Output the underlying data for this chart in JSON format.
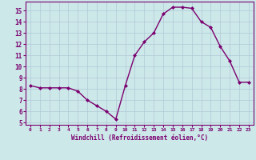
{
  "hours": [
    0,
    1,
    2,
    3,
    4,
    5,
    6,
    7,
    8,
    9,
    10,
    11,
    12,
    13,
    14,
    15,
    16,
    17,
    18,
    19,
    20,
    21,
    22,
    23
  ],
  "values": [
    8.3,
    8.1,
    8.1,
    8.1,
    8.1,
    7.8,
    7.0,
    6.5,
    6.0,
    5.3,
    8.3,
    11.0,
    12.2,
    13.0,
    14.7,
    15.3,
    15.3,
    15.2,
    14.0,
    13.5,
    11.8,
    10.5,
    8.6,
    8.6
  ],
  "line_color": "#7B0070",
  "bg_color": "#cce8e8",
  "grid_color": "#b0c8d8",
  "xlabel": "Windchill (Refroidissement éolien,°C)",
  "xlabel_color": "#7B0070",
  "tick_color": "#7B0070",
  "ylim": [
    4.8,
    15.8
  ],
  "yticks": [
    5,
    6,
    7,
    8,
    9,
    10,
    11,
    12,
    13,
    14,
    15
  ],
  "marker": "D",
  "marker_size": 2,
  "line_width": 1.0
}
